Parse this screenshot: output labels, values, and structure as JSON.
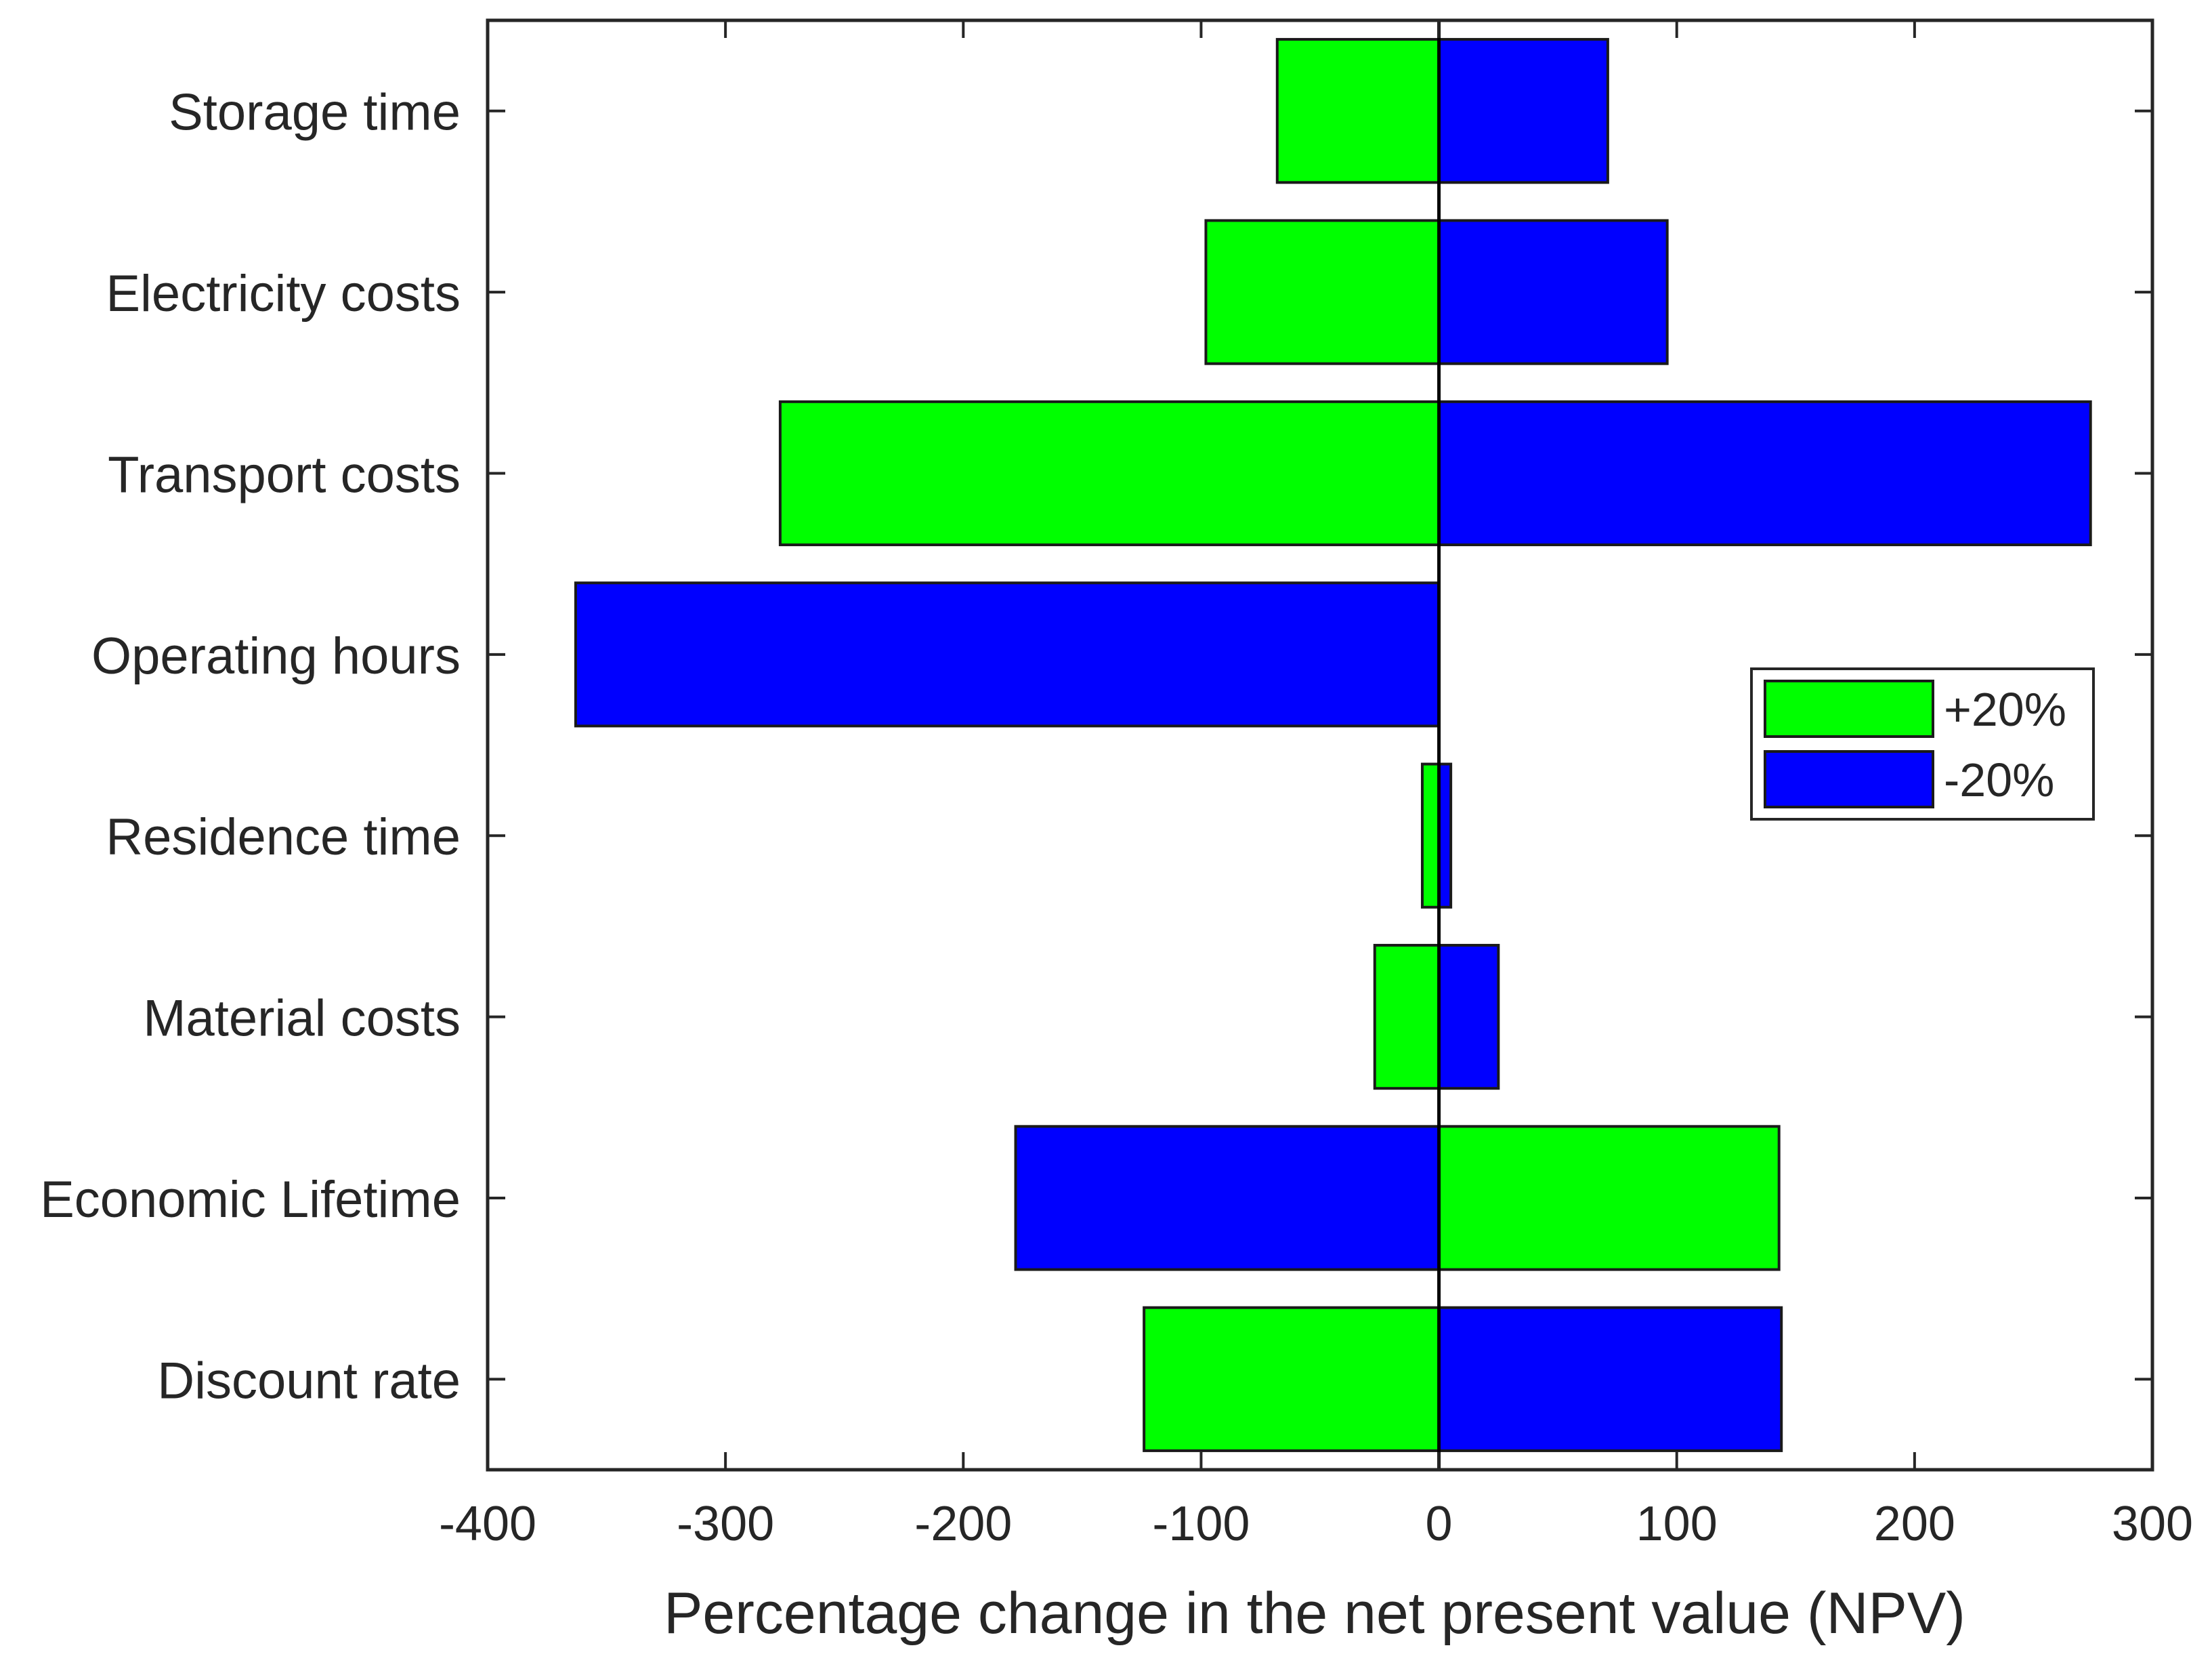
{
  "chart_data": {
    "type": "bar",
    "orientation": "horizontal",
    "title": "",
    "xlabel": "Percentage change in the net present value (NPV)",
    "ylabel": "",
    "xlim": [
      -400,
      300
    ],
    "xticks": [
      -400,
      -300,
      -200,
      -100,
      0,
      100,
      200,
      300
    ],
    "xtick_labels": [
      "-400",
      "-300",
      "-200",
      "-100",
      "0",
      "100",
      "200",
      "300"
    ],
    "grid": false,
    "legend_position": "right",
    "categories": [
      "Storage time",
      "Electricity costs",
      "Transport costs",
      "Operating hours",
      "Residence time",
      "Material costs",
      "Economic Lifetime",
      "Discount rate"
    ],
    "series": [
      {
        "name": "+20%",
        "color": "#00ff00",
        "values": [
          -68,
          -98,
          -277,
          null,
          -7,
          -27,
          143,
          -124
        ]
      },
      {
        "name": "-20%",
        "color": "#0000ff",
        "values": [
          71,
          96,
          274,
          -363,
          5,
          25,
          -178,
          144
        ]
      }
    ]
  }
}
